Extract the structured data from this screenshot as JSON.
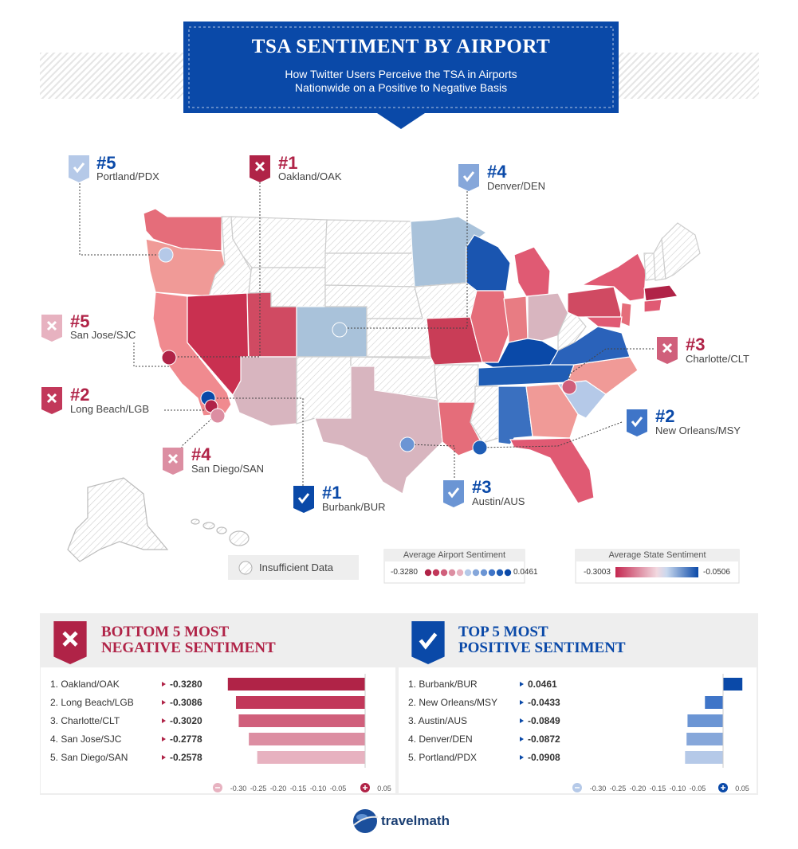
{
  "header": {
    "title": "TSA SENTIMENT BY AIRPORT",
    "subtitle_line1": "How Twitter Users Perceive the TSA in Airports",
    "subtitle_line2": "Nationwide on a Positive to Negative Basis"
  },
  "callouts": [
    {
      "rank": "#5",
      "name": "Portland/PDX",
      "kind": "positive"
    },
    {
      "rank": "#1",
      "name": "Oakland/OAK",
      "kind": "negative"
    },
    {
      "rank": "#4",
      "name": "Denver/DEN",
      "kind": "positive"
    },
    {
      "rank": "#5",
      "name": "San Jose/SJC",
      "kind": "negative"
    },
    {
      "rank": "#3",
      "name": "Charlotte/CLT",
      "kind": "negative"
    },
    {
      "rank": "#2",
      "name": "Long Beach/LGB",
      "kind": "negative"
    },
    {
      "rank": "#2",
      "name": "New Orleans/MSY",
      "kind": "positive"
    },
    {
      "rank": "#4",
      "name": "San Diego/SAN",
      "kind": "negative"
    },
    {
      "rank": "#1",
      "name": "Burbank/BUR",
      "kind": "positive"
    },
    {
      "rank": "#3",
      "name": "Austin/AUS",
      "kind": "positive"
    }
  ],
  "legend": {
    "insufficient": "Insufficient Data",
    "airport_title": "Average Airport Sentiment",
    "airport_min": "-0.3280",
    "airport_max": "0.0461",
    "state_title": "Average State Sentiment",
    "state_min": "-0.3003",
    "state_max": "-0.0506"
  },
  "colors": {
    "navy": "#0a49a8",
    "crimson": "#b02347",
    "neg_scale": [
      "#b02347",
      "#c2385a",
      "#d05f7b",
      "#dc8ea2",
      "#e7b2c0"
    ],
    "pos_scale": [
      "#0a49a8",
      "#3f75c8",
      "#6b95d4",
      "#86a7da",
      "#b5c9e8"
    ]
  },
  "bottom": {
    "title_line1": "BOTTOM 5 MOST",
    "title_line2": "NEGATIVE SENTIMENT"
  },
  "top": {
    "title_line1": "TOP 5 MOST",
    "title_line2": "POSITIVE SENTIMENT"
  },
  "brand": {
    "name": "travelmath"
  },
  "chart_data": [
    {
      "type": "bar",
      "title": "BOTTOM 5 MOST NEGATIVE SENTIMENT",
      "categories": [
        "1. Oakland/OAK",
        "2. Long Beach/LGB",
        "3. Charlotte/CLT",
        "4. San Jose/SJC",
        "5. San Diego/SAN"
      ],
      "value_labels": [
        "-0.3280",
        "-0.3086",
        "-0.3020",
        "-0.2778",
        "-0.2578"
      ],
      "values": [
        -0.328,
        -0.3086,
        -0.302,
        -0.2778,
        -0.2578
      ],
      "xlim": [
        -0.3,
        0.05
      ],
      "ticks": [
        "-0.30",
        "-0.25",
        "-0.20",
        "-0.15",
        "-0.10",
        "-0.05",
        "0.05"
      ]
    },
    {
      "type": "bar",
      "title": "TOP 5 MOST POSITIVE SENTIMENT",
      "categories": [
        "1. Burbank/BUR",
        "2. New Orleans/MSY",
        "3. Austin/AUS",
        "4. Denver/DEN",
        "5. Portland/PDX"
      ],
      "value_labels": [
        "0.0461",
        "-0.0433",
        "-0.0849",
        "-0.0872",
        "-0.0908"
      ],
      "values": [
        0.0461,
        -0.0433,
        -0.0849,
        -0.0872,
        -0.0908
      ],
      "xlim": [
        -0.3,
        0.05
      ],
      "ticks": [
        "-0.30",
        "-0.25",
        "-0.20",
        "-0.15",
        "-0.10",
        "-0.05",
        "0.05"
      ]
    }
  ]
}
